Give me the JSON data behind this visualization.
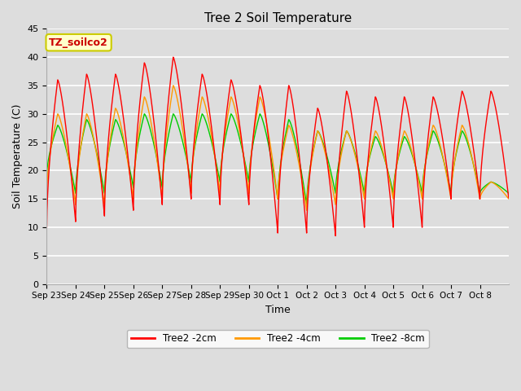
{
  "title": "Tree 2 Soil Temperature",
  "xlabel": "Time",
  "ylabel": "Soil Temperature (C)",
  "annotation": "TZ_soilco2",
  "annotation_color": "#cc0000",
  "annotation_box_color": "#ffffcc",
  "annotation_border_color": "#cccc00",
  "ylim": [
    0,
    45
  ],
  "yticks": [
    0,
    5,
    10,
    15,
    20,
    25,
    30,
    35,
    40,
    45
  ],
  "xtick_labels": [
    "Sep 23",
    "Sep 24",
    "Sep 25",
    "Sep 26",
    "Sep 27",
    "Sep 28",
    "Sep 29",
    "Sep 30",
    "Oct 1",
    "Oct 2",
    "Oct 3",
    "Oct 4",
    "Oct 5",
    "Oct 6",
    "Oct 7",
    "Oct 8"
  ],
  "legend_labels": [
    "Tree2 -2cm",
    "Tree2 -4cm",
    "Tree2 -8cm"
  ],
  "line_colors": [
    "#ff0000",
    "#ff9900",
    "#00cc00"
  ],
  "background_color": "#dddddd",
  "peaks_2cm": [
    36,
    37,
    37,
    39,
    40,
    37,
    36,
    35,
    35,
    31,
    34,
    33,
    33,
    33,
    34,
    34
  ],
  "troughs_2cm": [
    10,
    11,
    12,
    13,
    14,
    15,
    14,
    14,
    9,
    9,
    8.5,
    10,
    10,
    10,
    15,
    15
  ],
  "peaks_4cm": [
    30,
    30,
    31,
    33,
    35,
    33,
    33,
    33,
    28,
    27,
    27,
    27,
    27,
    28,
    28,
    18
  ],
  "troughs_4cm": [
    16,
    14,
    14,
    15,
    15,
    16,
    16,
    16,
    15,
    13,
    14,
    15,
    15,
    15,
    15,
    15
  ],
  "peaks_8cm": [
    28,
    29,
    29,
    30,
    30,
    30,
    30,
    30,
    29,
    27,
    27,
    26,
    26,
    27,
    27,
    18
  ],
  "troughs_8cm": [
    19,
    16,
    16,
    17,
    17,
    18,
    18,
    18,
    15,
    14,
    16,
    16,
    16,
    16,
    16,
    16
  ],
  "figsize": [
    6.4,
    4.8
  ],
  "dpi": 100
}
